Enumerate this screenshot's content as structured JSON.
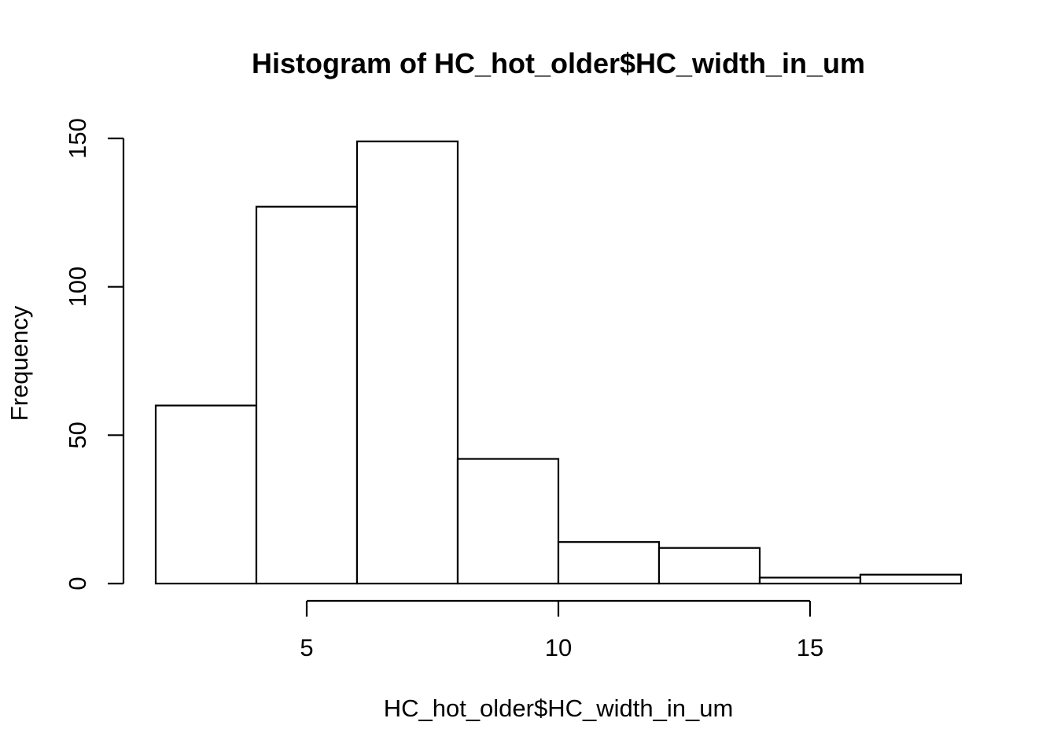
{
  "chart_data": {
    "type": "bar",
    "title": "Histogram of HC_hot_older$HC_width_in_um",
    "xlabel": "HC_hot_older$HC_width_in_um",
    "ylabel": "Frequency",
    "bins": [
      {
        "start": 2,
        "end": 4,
        "value": 60
      },
      {
        "start": 4,
        "end": 6,
        "value": 127
      },
      {
        "start": 6,
        "end": 8,
        "value": 149
      },
      {
        "start": 8,
        "end": 10,
        "value": 42
      },
      {
        "start": 10,
        "end": 12,
        "value": 14
      },
      {
        "start": 12,
        "end": 14,
        "value": 12
      },
      {
        "start": 14,
        "end": 16,
        "value": 2
      },
      {
        "start": 16,
        "end": 18,
        "value": 3
      }
    ],
    "x_ticks": [
      5,
      10,
      15
    ],
    "y_ticks": [
      0,
      50,
      100,
      150
    ],
    "xlim": [
      2,
      18
    ],
    "ylim": [
      0,
      150
    ],
    "grid": false,
    "legend": "none",
    "bar_fill": "#ffffff",
    "bar_stroke": "#000000"
  }
}
